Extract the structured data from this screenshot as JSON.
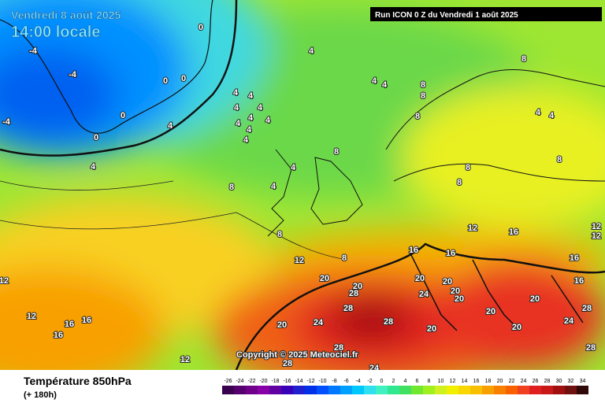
{
  "header": {
    "date": "Vendredi 8 août 2025",
    "time": "14:00 locale",
    "run": "Run ICON 0 Z du Vendredi 1 août 2025"
  },
  "copyright": "Copyright © 2025 Meteociel.fr",
  "footer": {
    "title": "Température 850hPa",
    "subtitle": "(+ 180h)"
  },
  "scale_labels": [
    -26,
    -24,
    -22,
    -20,
    -18,
    -16,
    -14,
    -12,
    -10,
    -8,
    -6,
    -4,
    -2,
    0,
    2,
    4,
    6,
    8,
    10,
    12,
    14,
    16,
    18,
    20,
    22,
    24,
    26,
    28,
    30,
    32,
    34
  ],
  "contour_labels": [
    "0",
    "0",
    "0",
    "0",
    "0",
    "-4",
    "-4",
    "-4",
    "4",
    "4",
    "4",
    "4",
    "4",
    "4",
    "4",
    "4",
    "4",
    "4",
    "4",
    "4",
    "4",
    "4",
    "4",
    "4",
    "4",
    "4",
    "8",
    "8",
    "8",
    "8",
    "8",
    "8",
    "8",
    "8",
    "8",
    "8",
    "8",
    "12",
    "12",
    "12",
    "12",
    "12",
    "12",
    "12",
    "16",
    "16",
    "16",
    "16",
    "16",
    "16",
    "16",
    "16",
    "20",
    "20",
    "20",
    "20",
    "20",
    "20",
    "20",
    "20",
    "20",
    "20",
    "20",
    "24",
    "24",
    "24",
    "24",
    "28",
    "28",
    "28",
    "28",
    "28",
    "28",
    "28"
  ]
}
